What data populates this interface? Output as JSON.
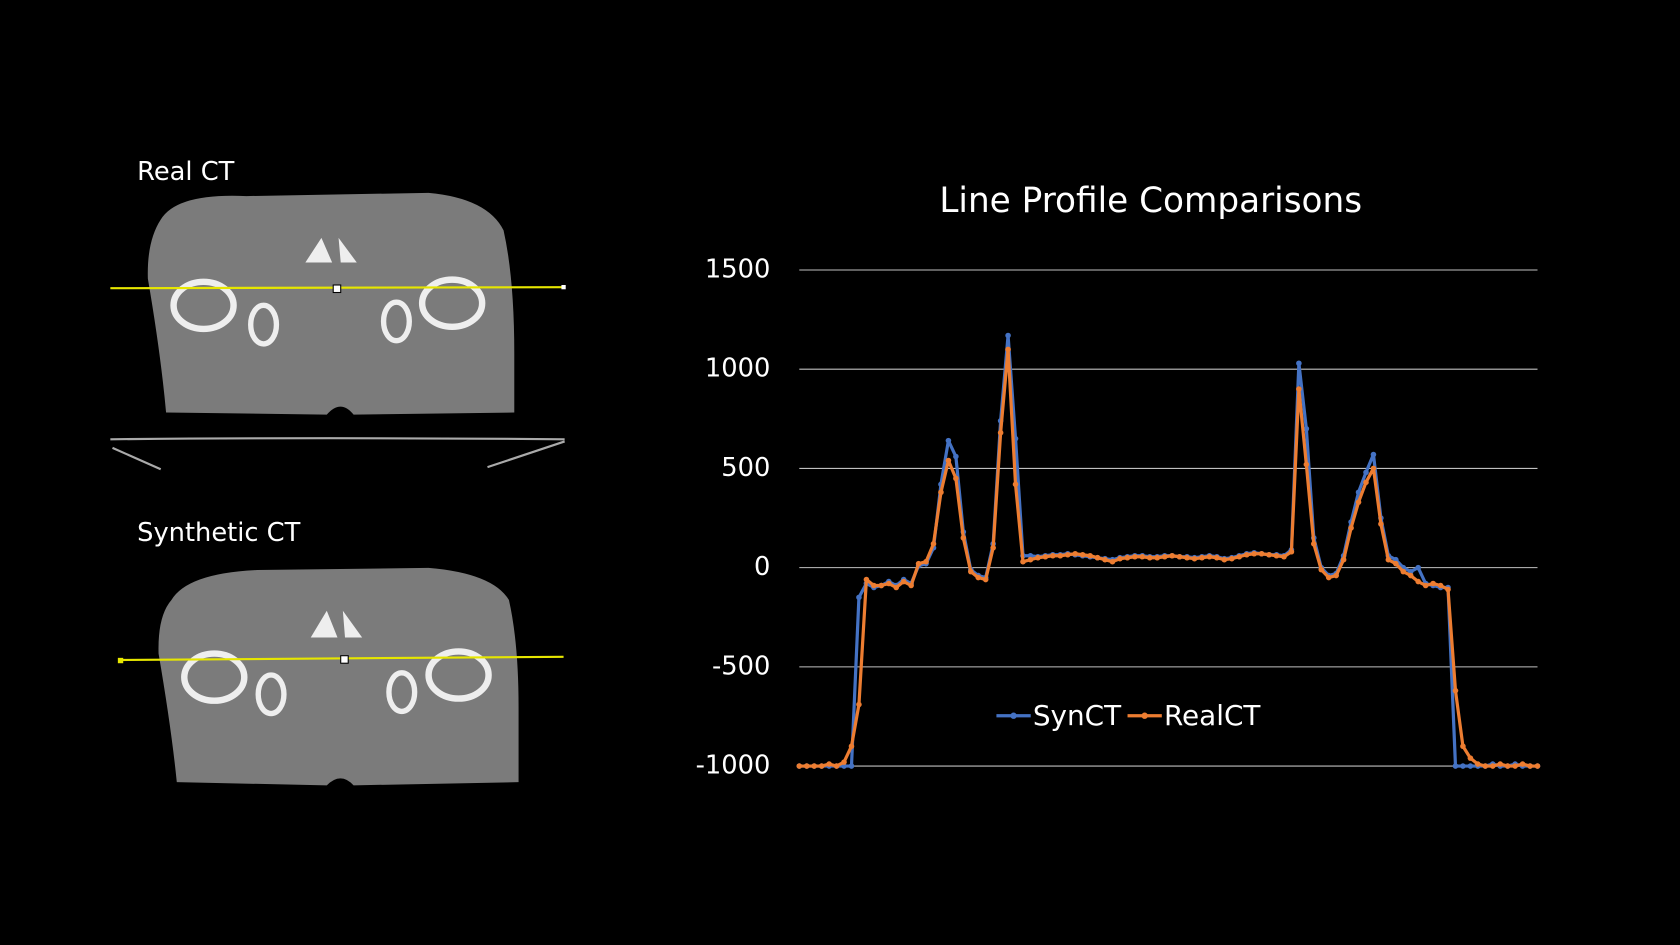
{
  "panels": [
    {
      "label": "Real CT"
    },
    {
      "label": "Synthetic CT"
    }
  ],
  "chart_data": {
    "type": "line",
    "title": "Line Profile Comparisons",
    "categories": [
      null,
      null,
      null,
      null,
      null,
      null,
      null,
      null,
      null,
      null,
      null,
      null,
      null,
      null,
      null,
      null,
      null,
      null,
      null,
      null,
      null,
      null,
      null,
      null,
      null,
      null,
      null,
      null,
      null,
      null,
      null,
      null,
      null,
      null,
      null,
      null,
      null,
      null,
      null,
      null,
      null,
      null,
      null,
      null,
      null,
      null,
      null,
      null,
      null,
      null,
      null,
      null,
      null,
      null,
      null,
      null,
      null,
      null,
      null,
      null,
      null,
      null,
      null,
      null,
      null,
      null,
      null,
      null,
      null,
      null,
      null,
      null,
      null,
      null,
      null,
      null,
      null,
      null,
      null,
      null,
      null,
      null,
      null,
      null,
      null,
      null,
      null,
      null,
      null,
      null,
      null,
      null,
      null,
      null,
      null,
      null,
      null,
      null,
      null,
      null
    ],
    "series": [
      {
        "name": "SynCT",
        "color": "#4472c4",
        "values": [
          -1000,
          -1000,
          -1000,
          -1000,
          -1000,
          -1000,
          -1000,
          -1000,
          -150,
          -80,
          -100,
          -90,
          -70,
          -90,
          -60,
          -80,
          10,
          20,
          100,
          420,
          640,
          560,
          180,
          -10,
          -40,
          -50,
          120,
          740,
          1170,
          650,
          60,
          60,
          55,
          60,
          65,
          65,
          70,
          65,
          60,
          55,
          50,
          45,
          40,
          50,
          55,
          60,
          60,
          55,
          55,
          60,
          60,
          55,
          55,
          50,
          55,
          60,
          55,
          45,
          50,
          60,
          70,
          75,
          70,
          65,
          65,
          60,
          90,
          1030,
          700,
          150,
          0,
          -40,
          -30,
          60,
          230,
          380,
          480,
          570,
          250,
          60,
          40,
          0,
          -20,
          0,
          -80,
          -90,
          -100,
          -100,
          -1000,
          -1000,
          -1000,
          -1000,
          -1000,
          -990,
          -1000,
          -1000,
          -990,
          -1000,
          -1000,
          -1000
        ]
      },
      {
        "name": "RealCT",
        "color": "#ed7d31",
        "values": [
          -1000,
          -1000,
          -1000,
          -1000,
          -990,
          -1000,
          -980,
          -900,
          -690,
          -60,
          -90,
          -90,
          -80,
          -100,
          -70,
          -90,
          20,
          30,
          120,
          380,
          540,
          450,
          150,
          -20,
          -50,
          -60,
          100,
          680,
          1100,
          420,
          30,
          40,
          50,
          55,
          60,
          60,
          65,
          70,
          65,
          60,
          50,
          40,
          30,
          45,
          50,
          55,
          55,
          50,
          50,
          55,
          60,
          55,
          50,
          45,
          50,
          55,
          50,
          40,
          45,
          55,
          65,
          70,
          70,
          65,
          60,
          55,
          80,
          900,
          520,
          120,
          -10,
          -50,
          -40,
          40,
          200,
          330,
          430,
          500,
          220,
          40,
          20,
          -20,
          -40,
          -70,
          -90,
          -80,
          -90,
          -110,
          -620,
          -900,
          -960,
          -990,
          -1000,
          -1000,
          -990,
          -1000,
          -1000,
          -990,
          -1000,
          -1000
        ]
      }
    ],
    "ylim": [
      -1000,
      1500
    ],
    "yticks": [
      -1000,
      -500,
      0,
      500,
      1000,
      1500
    ],
    "grid": true,
    "legend": "bottom"
  }
}
